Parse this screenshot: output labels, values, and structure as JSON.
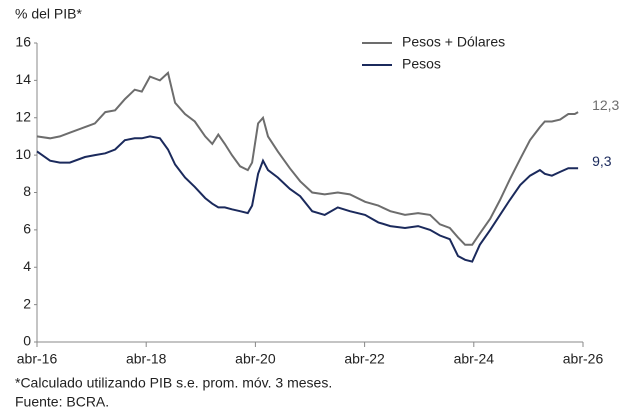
{
  "chart_data": {
    "type": "line",
    "ylabel": "% del PIB*",
    "x": [
      2016.25,
      2016.49,
      2016.67,
      2016.85,
      2017.13,
      2017.31,
      2017.5,
      2017.68,
      2017.86,
      2018.04,
      2018.17,
      2018.32,
      2018.5,
      2018.65,
      2018.78,
      2018.96,
      2019.14,
      2019.33,
      2019.46,
      2019.57,
      2019.69,
      2019.82,
      2019.97,
      2020.11,
      2020.19,
      2020.3,
      2020.39,
      2020.48,
      2020.66,
      2020.88,
      2021.07,
      2021.29,
      2021.52,
      2021.76,
      2021.98,
      2022.26,
      2022.5,
      2022.72,
      2022.99,
      2023.23,
      2023.45,
      2023.63,
      2023.81,
      2023.96,
      2024.09,
      2024.22,
      2024.36,
      2024.55,
      2024.73,
      2024.91,
      2025.1,
      2025.28,
      2025.46,
      2025.55,
      2025.68,
      2025.83,
      2025.98,
      2026.1,
      2026.16
    ],
    "series": [
      {
        "name": "Pesos + Dólares",
        "color": "#6d6d6d",
        "values": [
          11.0,
          10.9,
          11.0,
          11.2,
          11.5,
          11.7,
          12.3,
          12.4,
          13.0,
          13.5,
          13.4,
          14.2,
          14.0,
          14.4,
          12.8,
          12.2,
          11.8,
          11.0,
          10.6,
          11.1,
          10.6,
          10.0,
          9.4,
          9.2,
          9.6,
          11.7,
          12.0,
          11.0,
          10.2,
          9.3,
          8.6,
          8.0,
          7.9,
          8.0,
          7.9,
          7.5,
          7.3,
          7.0,
          6.8,
          6.9,
          6.8,
          6.3,
          6.1,
          5.6,
          5.2,
          5.2,
          5.8,
          6.6,
          7.6,
          8.7,
          9.8,
          10.8,
          11.5,
          11.8,
          11.8,
          11.9,
          12.2,
          12.2,
          12.3
        ],
        "value_labels": [
          null,
          null,
          null,
          null,
          null,
          null,
          null,
          null,
          null,
          null,
          null,
          null,
          null,
          null,
          null,
          null,
          null,
          null,
          null,
          null,
          null,
          null,
          null,
          null,
          null,
          null,
          null,
          null,
          null,
          null,
          null,
          null,
          null,
          null,
          null,
          null,
          null,
          null,
          null,
          null,
          null,
          null,
          null,
          null,
          null,
          null,
          null,
          null,
          null,
          null,
          null,
          null,
          null,
          null,
          null,
          null,
          null,
          null,
          "12,3"
        ]
      },
      {
        "name": "Pesos",
        "color": "#1b2a5c",
        "values": [
          10.2,
          9.7,
          9.6,
          9.6,
          9.9,
          10.0,
          10.1,
          10.3,
          10.8,
          10.9,
          10.9,
          11.0,
          10.9,
          10.3,
          9.5,
          8.8,
          8.3,
          7.7,
          7.4,
          7.2,
          7.2,
          7.1,
          7.0,
          6.9,
          7.3,
          9.0,
          9.7,
          9.2,
          8.8,
          8.2,
          7.8,
          7.0,
          6.8,
          7.2,
          7.0,
          6.8,
          6.4,
          6.2,
          6.1,
          6.2,
          6.0,
          5.7,
          5.5,
          4.6,
          4.4,
          4.3,
          5.2,
          6.0,
          6.8,
          7.6,
          8.4,
          8.9,
          9.2,
          9.0,
          8.9,
          9.1,
          9.3,
          9.3,
          9.3
        ],
        "value_labels": [
          null,
          null,
          null,
          null,
          null,
          null,
          null,
          null,
          null,
          null,
          null,
          null,
          null,
          null,
          null,
          null,
          null,
          null,
          null,
          null,
          null,
          null,
          null,
          null,
          null,
          null,
          null,
          null,
          null,
          null,
          null,
          null,
          null,
          null,
          null,
          null,
          null,
          null,
          null,
          null,
          null,
          null,
          null,
          null,
          null,
          null,
          null,
          null,
          null,
          null,
          null,
          null,
          null,
          null,
          null,
          null,
          null,
          null,
          "9,3"
        ]
      }
    ],
    "xlim": [
      2016.25,
      2026.25
    ],
    "xticks": [
      {
        "value": 2016.25,
        "label": "abr-16"
      },
      {
        "value": 2018.25,
        "label": "abr-18"
      },
      {
        "value": 2020.25,
        "label": "abr-20"
      },
      {
        "value": 2022.25,
        "label": "abr-22"
      },
      {
        "value": 2024.25,
        "label": "abr-24"
      },
      {
        "value": 2026.25,
        "label": "abr-26"
      }
    ],
    "ylim": [
      0,
      16
    ],
    "yticks": [
      0,
      2,
      4,
      6,
      8,
      10,
      12,
      14,
      16
    ],
    "grid": false,
    "legend": "top",
    "notes": [
      "*Calculado utilizando PIB s.e. prom. móv. 3 meses.",
      "Fuente: BCRA."
    ]
  }
}
